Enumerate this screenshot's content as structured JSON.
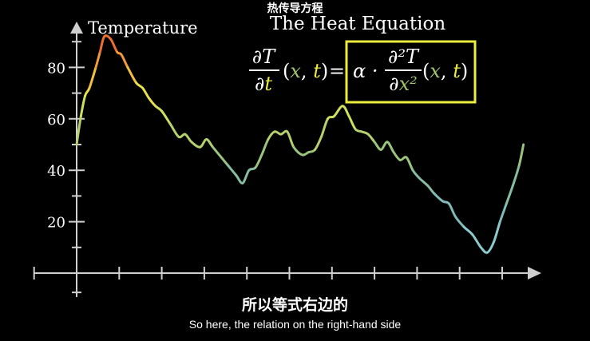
{
  "video": {
    "chinese_title": "热传导方程",
    "subtitle_cn": "所以等式右边的",
    "subtitle_en": "So here, the relation on the right-hand side"
  },
  "scene": {
    "equation_title": "The Heat Equation",
    "box_color": "#ecec3c",
    "variable_color": "#9fc46a",
    "time_color": "#ecec3c",
    "equation": {
      "lhs_num": "∂T",
      "lhs_den_d": "∂",
      "lhs_den_t": "t",
      "lhs_args_open": "(",
      "lhs_args_x": "x",
      "lhs_args_comma": ", ",
      "lhs_args_t": "t",
      "lhs_args_close": ")",
      "equals": "=",
      "alpha": "α ·",
      "rhs_num": "∂²T",
      "rhs_den_d": "∂",
      "rhs_den_x": "x²",
      "rhs_args_open": "(",
      "rhs_args_x": "x",
      "rhs_args_comma": ", ",
      "rhs_args_t": "t",
      "rhs_args_close": ")"
    }
  },
  "chart_data": {
    "type": "line",
    "ylabel": "Temperature",
    "yticks": [
      20,
      40,
      60,
      80
    ],
    "ylim": [
      -10,
      95
    ],
    "xlim": [
      0,
      11
    ],
    "grid": false,
    "series": [
      {
        "x": [
          0,
          0.1,
          0.2,
          0.3,
          0.45,
          0.55,
          0.65,
          0.8,
          0.95,
          1.05,
          1.2,
          1.4,
          1.55,
          1.7,
          1.85,
          2.0,
          2.2,
          2.4,
          2.55,
          2.7,
          2.9,
          3.05,
          3.2,
          3.4,
          3.55,
          3.75,
          3.9,
          4.05,
          4.2,
          4.35,
          4.5,
          4.65,
          4.8,
          4.95,
          5.1,
          5.3,
          5.45,
          5.6,
          5.75,
          5.9,
          6.05,
          6.25,
          6.4,
          6.55,
          6.7,
          6.85,
          7.0,
          7.15,
          7.3,
          7.45,
          7.6,
          7.75,
          7.9,
          8.05,
          8.25,
          8.4,
          8.6,
          8.75,
          8.9,
          9.1,
          9.3,
          9.5,
          9.65,
          9.8,
          9.95,
          10.1,
          10.25,
          10.4,
          10.5
        ],
        "y": [
          50,
          61,
          69,
          72,
          80,
          86,
          92,
          91,
          86,
          85,
          80,
          74,
          72,
          68,
          65,
          63,
          58,
          53,
          54,
          51,
          49,
          52,
          49,
          45,
          42,
          38,
          35,
          40,
          41,
          46,
          52,
          55,
          54,
          55,
          49,
          46,
          47,
          48,
          53,
          60,
          61,
          65,
          61,
          56,
          55,
          54,
          51,
          48,
          51,
          47,
          44,
          45,
          40,
          37,
          34,
          31,
          28,
          27,
          22,
          18,
          15,
          10,
          8,
          12,
          20,
          27,
          34,
          42,
          50
        ],
        "colors": [
          "#b6d87a",
          "#dcdc48",
          "#f0cd3a",
          "#f29a3a",
          "#f07a33",
          "#ec6f30",
          "#f08a38",
          "#f5b446",
          "#eee24f",
          "#d6e05c",
          "#b2d068",
          "#93c07a",
          "#7fb599",
          "#7ab8b8",
          "#8cc9cc"
        ],
        "color_stops": [
          50,
          58,
          66,
          76,
          85,
          92,
          88,
          80,
          70,
          62,
          54,
          46,
          36,
          22,
          10
        ]
      }
    ]
  }
}
